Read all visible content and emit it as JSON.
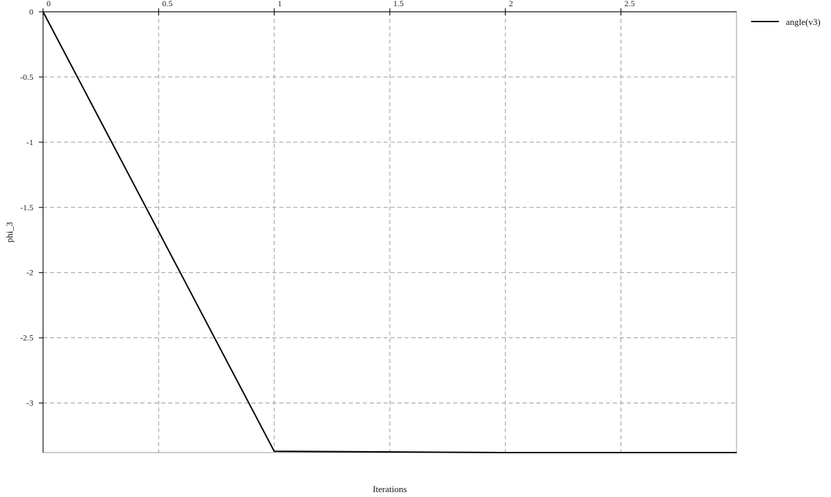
{
  "chart_data": {
    "type": "line",
    "xlabel": "Iterations",
    "ylabel": "phi_3",
    "xlim": [
      0,
      3
    ],
    "ylim": [
      -3.38,
      0
    ],
    "x_ticks": [
      0,
      0.5,
      1,
      1.5,
      2,
      2.5
    ],
    "x_tick_labels": [
      "0",
      "0.5",
      "1",
      "1.5",
      "2",
      "2.5"
    ],
    "y_ticks": [
      0,
      -0.5,
      -1,
      -1.5,
      -2,
      -2.5,
      -3
    ],
    "y_tick_labels": [
      "0",
      "-0.5",
      "-1",
      "-1.5",
      "-2",
      "-2.5",
      "-3"
    ],
    "grid": true,
    "x_axis_position": "top",
    "legend_position": "top-right",
    "series": [
      {
        "name": "angle(v3)",
        "color": "#000000",
        "x": [
          0,
          1,
          2,
          3
        ],
        "y": [
          0,
          -3.37,
          -3.38,
          -3.38
        ]
      }
    ]
  }
}
